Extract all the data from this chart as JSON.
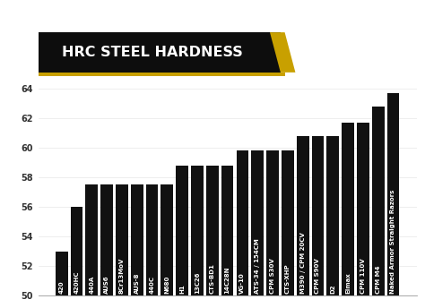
{
  "title": "HRC STEEL HARDNESS",
  "categories": [
    "420",
    "420HC",
    "440A",
    "AUS6",
    "8Cr13MoV",
    "AUS-8",
    "440C",
    "N680",
    "H1",
    "13C26",
    "CTS-BD1",
    "14C28N",
    "VG-10",
    "ATS-34 / 154CM",
    "CPM S30V",
    "CTS-XHP",
    "M390 / CPM 20CV",
    "CPM S90V",
    "D2",
    "Elmax",
    "CPM 110V",
    "CPM M4",
    "Naked Armor Straight Razors"
  ],
  "values": [
    53.0,
    56.0,
    57.5,
    57.5,
    57.5,
    57.5,
    57.5,
    57.5,
    58.8,
    58.8,
    58.8,
    58.8,
    59.8,
    59.8,
    59.8,
    59.8,
    60.8,
    60.8,
    60.8,
    61.7,
    61.7,
    62.8,
    63.7
  ],
  "bar_color": "#111111",
  "background_color": "#ffffff",
  "title_bg_color": "#0d0d0d",
  "title_text_color": "#ffffff",
  "title_accent_color": "#c8a000",
  "ylim_min": 50,
  "ylim_max": 65,
  "yticks": [
    50,
    52,
    54,
    56,
    58,
    60,
    62,
    64
  ],
  "label_color": "#ffffff",
  "label_fontsize": 5.0,
  "ytick_fontsize": 7.0,
  "title_fontsize": 11.5
}
